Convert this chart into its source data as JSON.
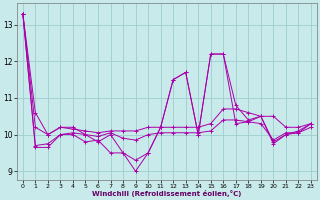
{
  "xlabel": "Windchill (Refroidissement éolien,°C)",
  "background_color": "#c8eaea",
  "grid_color": "#9ecece",
  "line_color": "#aa00aa",
  "xlim": [
    -0.5,
    23.5
  ],
  "ylim": [
    8.75,
    13.6
  ],
  "yticks": [
    9,
    10,
    11,
    12,
    13
  ],
  "xticks": [
    0,
    1,
    2,
    3,
    4,
    5,
    6,
    7,
    8,
    9,
    10,
    11,
    12,
    13,
    14,
    15,
    16,
    17,
    18,
    19,
    20,
    21,
    22,
    23
  ],
  "series": [
    [
      13.3,
      10.6,
      10.0,
      10.2,
      10.2,
      10.0,
      9.8,
      10.0,
      9.5,
      9.3,
      9.5,
      10.2,
      11.5,
      11.7,
      10.0,
      12.2,
      12.2,
      10.8,
      10.4,
      10.5,
      9.8,
      10.0,
      10.1,
      10.3
    ],
    [
      13.3,
      10.2,
      10.0,
      10.2,
      10.15,
      10.1,
      10.05,
      10.1,
      10.1,
      10.1,
      10.2,
      10.2,
      10.2,
      10.2,
      10.2,
      10.3,
      10.7,
      10.7,
      10.6,
      10.5,
      10.5,
      10.2,
      10.2,
      10.3
    ],
    [
      13.3,
      9.7,
      9.75,
      10.0,
      10.05,
      10.0,
      9.95,
      10.05,
      9.9,
      9.85,
      10.0,
      10.05,
      10.05,
      10.05,
      10.05,
      10.1,
      10.4,
      10.4,
      10.35,
      10.3,
      9.85,
      10.05,
      10.05,
      10.2
    ],
    [
      13.3,
      9.65,
      9.65,
      10.0,
      10.0,
      9.8,
      9.85,
      9.5,
      9.5,
      9.0,
      9.5,
      10.2,
      11.5,
      11.7,
      10.0,
      12.2,
      12.2,
      10.3,
      10.35,
      10.5,
      9.75,
      10.0,
      10.05,
      10.3
    ]
  ]
}
